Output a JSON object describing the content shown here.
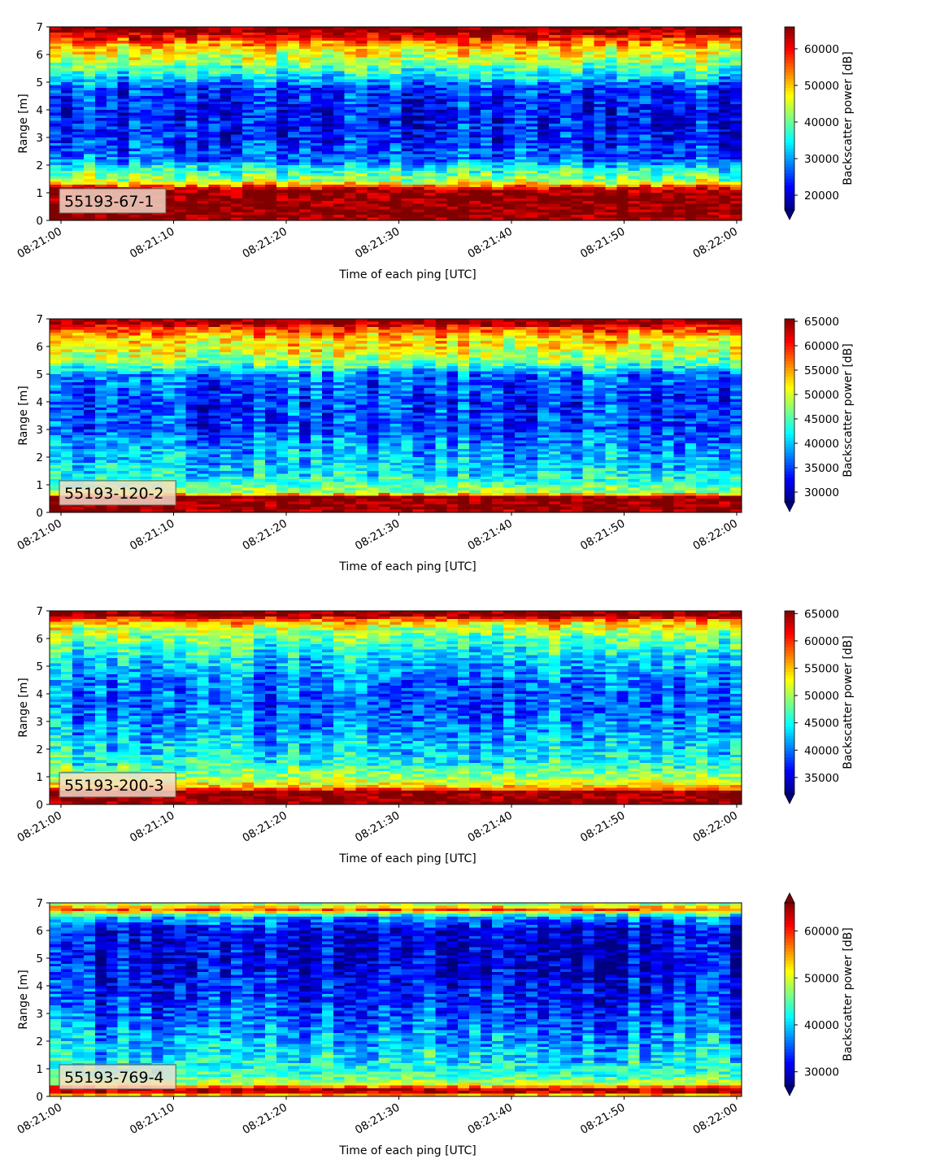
{
  "chart_data": [
    {
      "type": "heatmap",
      "label": "55193-67-1",
      "xlabel": "Time of each ping [UTC]",
      "ylabel": "Range [m]",
      "xticks": [
        "08:21:00",
        "08:21:10",
        "08:21:20",
        "08:21:30",
        "08:21:40",
        "08:21:50",
        "08:22:00"
      ],
      "yticks": [
        "0",
        "1",
        "2",
        "3",
        "4",
        "5",
        "6",
        "7"
      ],
      "ylim": [
        0,
        7
      ],
      "colorbar": {
        "label": "Backscatter power [dB]",
        "ticks": [
          "20000",
          "30000",
          "40000",
          "50000",
          "60000"
        ],
        "tick_values": [
          20000,
          30000,
          40000,
          50000,
          60000
        ],
        "range": [
          16000,
          66000
        ],
        "extend": "min",
        "colormap": "jet"
      },
      "profile": [
        {
          "r": 0.0,
          "v": 0.97
        },
        {
          "r": 0.2,
          "v": 1.0
        },
        {
          "r": 1.0,
          "v": 1.0
        },
        {
          "r": 1.2,
          "v": 0.85
        },
        {
          "r": 1.4,
          "v": 0.55
        },
        {
          "r": 1.8,
          "v": 0.42
        },
        {
          "r": 2.2,
          "v": 0.22
        },
        {
          "r": 3.0,
          "v": 0.15
        },
        {
          "r": 4.0,
          "v": 0.13
        },
        {
          "r": 4.8,
          "v": 0.18
        },
        {
          "r": 5.2,
          "v": 0.35
        },
        {
          "r": 5.8,
          "v": 0.55
        },
        {
          "r": 6.3,
          "v": 0.68
        },
        {
          "r": 6.6,
          "v": 0.85
        },
        {
          "r": 6.9,
          "v": 1.0
        },
        {
          "r": 7.0,
          "v": 1.0
        }
      ]
    },
    {
      "type": "heatmap",
      "label": "55193-120-2",
      "xlabel": "Time of each ping [UTC]",
      "ylabel": "Range [m]",
      "xticks": [
        "08:21:00",
        "08:21:10",
        "08:21:20",
        "08:21:30",
        "08:21:40",
        "08:21:50",
        "08:22:00"
      ],
      "yticks": [
        "0",
        "1",
        "2",
        "3",
        "4",
        "5",
        "6",
        "7"
      ],
      "ylim": [
        0,
        7
      ],
      "colorbar": {
        "label": "Backscatter power [dB]",
        "ticks": [
          "30000",
          "35000",
          "40000",
          "45000",
          "50000",
          "55000",
          "60000",
          "65000"
        ],
        "tick_values": [
          30000,
          35000,
          40000,
          45000,
          50000,
          55000,
          60000,
          65000
        ],
        "range": [
          28000,
          65500
        ],
        "extend": "min",
        "colormap": "jet"
      },
      "profile": [
        {
          "r": 0.0,
          "v": 0.97
        },
        {
          "r": 0.15,
          "v": 1.0
        },
        {
          "r": 0.55,
          "v": 1.0
        },
        {
          "r": 0.7,
          "v": 0.55
        },
        {
          "r": 1.0,
          "v": 0.45
        },
        {
          "r": 1.5,
          "v": 0.35
        },
        {
          "r": 2.2,
          "v": 0.3
        },
        {
          "r": 3.0,
          "v": 0.2
        },
        {
          "r": 4.0,
          "v": 0.18
        },
        {
          "r": 5.0,
          "v": 0.25
        },
        {
          "r": 5.3,
          "v": 0.45
        },
        {
          "r": 5.8,
          "v": 0.6
        },
        {
          "r": 6.3,
          "v": 0.66
        },
        {
          "r": 6.6,
          "v": 0.8
        },
        {
          "r": 6.9,
          "v": 1.0
        },
        {
          "r": 7.0,
          "v": 1.0
        }
      ]
    },
    {
      "type": "heatmap",
      "label": "55193-200-3",
      "xlabel": "Time of each ping [UTC]",
      "ylabel": "Range [m]",
      "xticks": [
        "08:21:00",
        "08:21:10",
        "08:21:20",
        "08:21:30",
        "08:21:40",
        "08:21:50",
        "08:22:00"
      ],
      "yticks": [
        "0",
        "1",
        "2",
        "3",
        "4",
        "5",
        "6",
        "7"
      ],
      "ylim": [
        0,
        7
      ],
      "colorbar": {
        "label": "Backscatter power [dB]",
        "ticks": [
          "35000",
          "40000",
          "45000",
          "50000",
          "55000",
          "60000",
          "65000"
        ],
        "tick_values": [
          35000,
          40000,
          45000,
          50000,
          55000,
          60000,
          65000
        ],
        "range": [
          32000,
          65500
        ],
        "extend": "min",
        "colormap": "jet"
      },
      "profile": [
        {
          "r": 0.0,
          "v": 0.97
        },
        {
          "r": 0.15,
          "v": 1.0
        },
        {
          "r": 0.45,
          "v": 1.0
        },
        {
          "r": 0.6,
          "v": 0.7
        },
        {
          "r": 0.9,
          "v": 0.55
        },
        {
          "r": 1.5,
          "v": 0.4
        },
        {
          "r": 2.5,
          "v": 0.3
        },
        {
          "r": 3.5,
          "v": 0.22
        },
        {
          "r": 4.5,
          "v": 0.25
        },
        {
          "r": 5.3,
          "v": 0.35
        },
        {
          "r": 5.8,
          "v": 0.45
        },
        {
          "r": 6.3,
          "v": 0.55
        },
        {
          "r": 6.6,
          "v": 0.7
        },
        {
          "r": 6.85,
          "v": 1.0
        },
        {
          "r": 7.0,
          "v": 1.0
        }
      ]
    },
    {
      "type": "heatmap",
      "label": "55193-769-4",
      "xlabel": "Time of each ping [UTC]",
      "ylabel": "Range [m]",
      "xticks": [
        "08:21:00",
        "08:21:10",
        "08:21:20",
        "08:21:30",
        "08:21:40",
        "08:21:50",
        "08:22:00"
      ],
      "yticks": [
        "0",
        "1",
        "2",
        "3",
        "4",
        "5",
        "6",
        "7"
      ],
      "ylim": [
        0,
        7
      ],
      "colorbar": {
        "label": "Backscatter power [dB]",
        "ticks": [
          "30000",
          "40000",
          "50000",
          "60000"
        ],
        "tick_values": [
          30000,
          40000,
          50000,
          60000
        ],
        "range": [
          27000,
          66000
        ],
        "extend": "both",
        "colormap": "jet"
      },
      "profile": [
        {
          "r": 0.0,
          "v": 0.6
        },
        {
          "r": 0.15,
          "v": 0.95
        },
        {
          "r": 0.3,
          "v": 0.95
        },
        {
          "r": 0.4,
          "v": 0.6
        },
        {
          "r": 0.7,
          "v": 0.45
        },
        {
          "r": 1.2,
          "v": 0.38
        },
        {
          "r": 2.0,
          "v": 0.3
        },
        {
          "r": 3.0,
          "v": 0.2
        },
        {
          "r": 4.0,
          "v": 0.14
        },
        {
          "r": 5.0,
          "v": 0.1
        },
        {
          "r": 6.0,
          "v": 0.1
        },
        {
          "r": 6.5,
          "v": 0.3
        },
        {
          "r": 6.75,
          "v": 0.8
        },
        {
          "r": 6.9,
          "v": 0.6
        },
        {
          "r": 7.0,
          "v": 0.5
        }
      ]
    }
  ]
}
